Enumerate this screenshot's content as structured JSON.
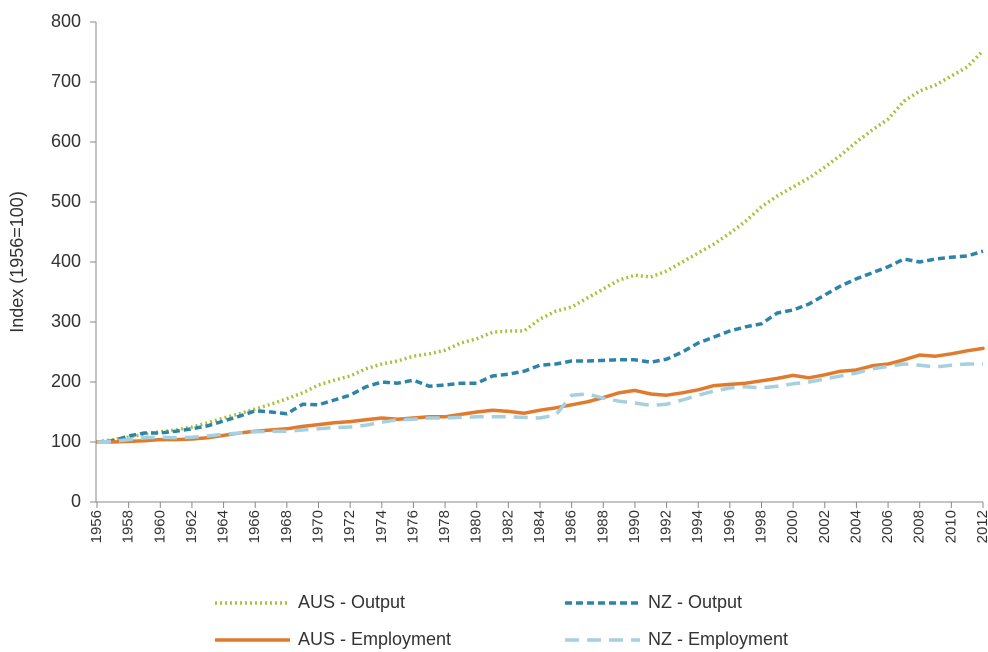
{
  "chart_data": {
    "type": "line",
    "y_label": "Index (1956=100)",
    "x": [
      1956,
      1957,
      1958,
      1959,
      1960,
      1961,
      1962,
      1963,
      1964,
      1965,
      1966,
      1967,
      1968,
      1969,
      1970,
      1971,
      1972,
      1973,
      1974,
      1975,
      1976,
      1977,
      1978,
      1979,
      1980,
      1981,
      1982,
      1983,
      1984,
      1985,
      1986,
      1987,
      1988,
      1989,
      1990,
      1991,
      1992,
      1993,
      1994,
      1995,
      1996,
      1997,
      1998,
      1999,
      2000,
      2001,
      2002,
      2003,
      2004,
      2005,
      2006,
      2007,
      2008,
      2009,
      2010,
      2011,
      2012
    ],
    "xlim": [
      1956,
      2012
    ],
    "xticks": [
      1956,
      1958,
      1960,
      1962,
      1964,
      1966,
      1968,
      1970,
      1972,
      1974,
      1976,
      1978,
      1980,
      1982,
      1984,
      1986,
      1988,
      1990,
      1992,
      1994,
      1996,
      1998,
      2000,
      2002,
      2004,
      2006,
      2008,
      2010,
      2012
    ],
    "ylim": [
      0,
      800
    ],
    "yticks": [
      0,
      100,
      200,
      300,
      400,
      500,
      600,
      700,
      800
    ],
    "series": [
      {
        "name": "AUS - Output",
        "color": "#a9c23f",
        "style": "dotted",
        "values": [
          100,
          104,
          108,
          113,
          117,
          120,
          125,
          132,
          140,
          147,
          155,
          163,
          172,
          182,
          195,
          203,
          210,
          222,
          230,
          235,
          243,
          247,
          253,
          265,
          272,
          283,
          285,
          285,
          305,
          318,
          325,
          340,
          355,
          370,
          378,
          375,
          385,
          400,
          415,
          430,
          448,
          468,
          492,
          510,
          525,
          540,
          558,
          578,
          600,
          620,
          638,
          668,
          685,
          695,
          710,
          725,
          752
        ]
      },
      {
        "name": "NZ - Output",
        "color": "#2e84a8",
        "style": "dashed",
        "values": [
          100,
          102,
          110,
          115,
          115,
          118,
          122,
          127,
          135,
          143,
          152,
          150,
          147,
          163,
          162,
          170,
          178,
          192,
          200,
          198,
          203,
          193,
          195,
          198,
          198,
          210,
          213,
          218,
          228,
          230,
          235,
          235,
          236,
          237,
          237,
          233,
          238,
          250,
          265,
          275,
          285,
          292,
          297,
          315,
          320,
          330,
          345,
          360,
          372,
          382,
          392,
          405,
          400,
          405,
          408,
          410,
          418
        ]
      },
      {
        "name": "AUS - Employment",
        "color": "#e07b2d",
        "style": "solid",
        "values": [
          100,
          100,
          101,
          102,
          104,
          104,
          105,
          107,
          111,
          115,
          118,
          120,
          122,
          126,
          129,
          132,
          134,
          137,
          140,
          138,
          140,
          142,
          142,
          146,
          150,
          153,
          151,
          148,
          153,
          157,
          162,
          167,
          174,
          182,
          186,
          180,
          178,
          182,
          187,
          194,
          196,
          198,
          202,
          206,
          211,
          207,
          212,
          218,
          220,
          227,
          230,
          237,
          245,
          243,
          247,
          252,
          256
        ]
      },
      {
        "name": "NZ - Employment",
        "color": "#a6cfe0",
        "style": "longdash",
        "values": [
          100,
          101,
          104,
          107,
          108,
          107,
          108,
          110,
          113,
          115,
          117,
          118,
          118,
          120,
          122,
          124,
          125,
          128,
          133,
          137,
          138,
          140,
          140,
          141,
          142,
          142,
          142,
          141,
          140,
          145,
          178,
          180,
          173,
          168,
          165,
          161,
          163,
          170,
          178,
          185,
          190,
          192,
          190,
          193,
          197,
          200,
          205,
          210,
          215,
          222,
          226,
          230,
          228,
          225,
          228,
          230,
          230
        ]
      }
    ]
  }
}
